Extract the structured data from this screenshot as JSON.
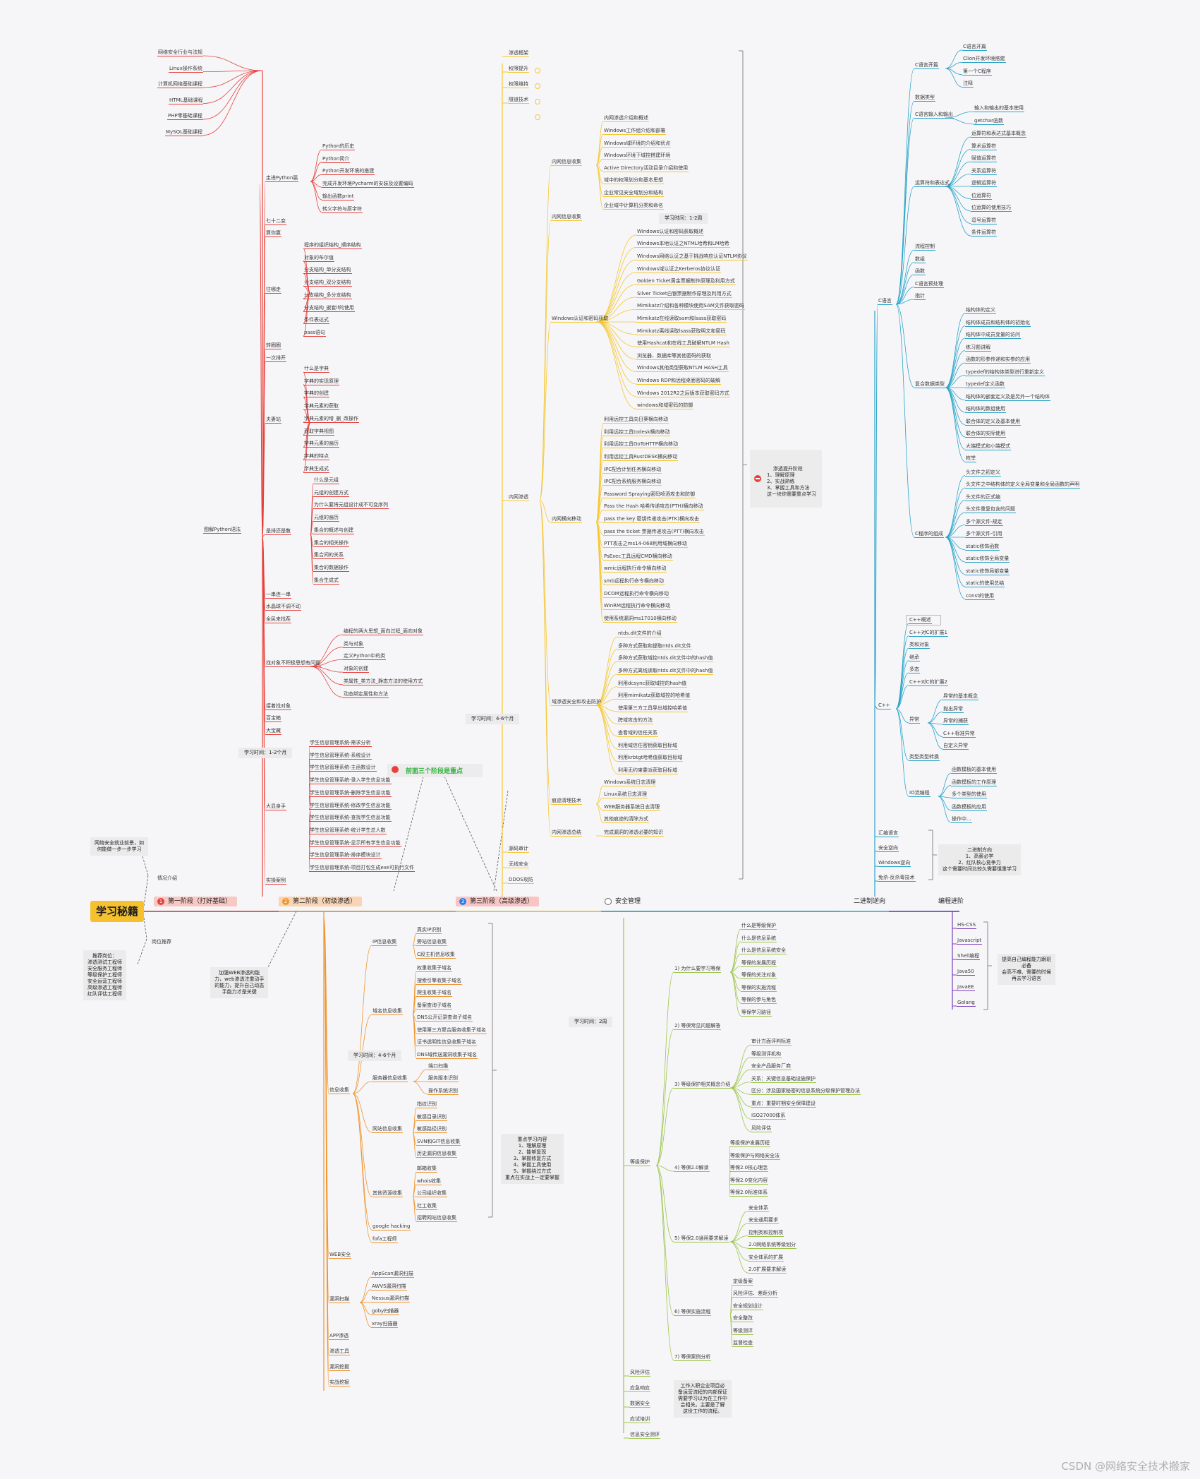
{
  "root": "学习秘籍",
  "stages": {
    "s1": {
      "num": "1",
      "label": "第一阶段（打好基础）"
    },
    "s2": {
      "num": "2",
      "label": "第二阶段（初级渗透）"
    },
    "s3": {
      "num": "3",
      "label": "第三阶段（高级渗透）"
    },
    "safety": "安全管理",
    "binary": "二进制逆向",
    "prog": "编程进阶"
  },
  "left_notes": {
    "future": "网络安全就业前景，如\n何能做一步一步学习",
    "direction_label": "情况介绍",
    "jobs_label": "岗位推荐",
    "jobs": "推荐岗位：\n渗透测试工程师\n安全服务工程师\n等级保护工程师\n安全运营工程师\n高级渗透工程师\n红队评估工程师"
  },
  "stage1": {
    "base_items": [
      "网络安全行业与法规",
      "Linux操作系统",
      "计算机网络基础课程",
      "HTML基础课程",
      "PHP零基础课程",
      "MySQL基础课程"
    ],
    "python_main": "图解Python语法",
    "time": "学习时间：1-2个月",
    "groups": {
      "g1": {
        "label": "走进Python篇",
        "items": [
          "Python的历史",
          "Python简介",
          "Python开发环境的搭建",
          "完成开发环境Pycharm的安装及设置编码",
          "输出函数print",
          "转义字符与原字符"
        ]
      },
      "g2": "七十二变",
      "g3": "算你赢",
      "g4": {
        "label": "往哪走",
        "items": [
          "程序的组织结构_顺序结构",
          "对象的布尔值",
          "分支结构_单分支结构",
          "分支结构_双分支结构",
          "分支结构_多分支结构",
          "分支结构_嵌套if的使用",
          "条件表达式",
          "pass语句"
        ]
      },
      "g5": "转圈圈",
      "g6": "一次排开",
      "g7": {
        "label": "夫妻站",
        "items": [
          "什么是字典",
          "字典的实现原理",
          "字典的创建",
          "字典元素的获取",
          "字典元素的增_删_改操作",
          "获取字典视图",
          "字典元素的遍历",
          "字典的特点",
          "字典生成式"
        ]
      },
      "g8": {
        "label": "是排还是散",
        "items": [
          "什么是元组",
          "元组的创建方式",
          "为什么要将元组设计成不可变序列",
          "元组的遍历",
          "集合的概述与创建",
          "集合的相关操作",
          "集合间的关系",
          "集合的数据操作",
          "集合生成式"
        ]
      },
      "g9": "一串连一串",
      "g10": "水晶球不调不动",
      "g11": "全民来找茬",
      "g12": {
        "label": "找对象不积极思想有问题",
        "items": [
          "编程的两大思想_面向过程_面向对象",
          "类与对象",
          "定义Python中的类",
          "对象的创建",
          "类属性_类方法_静态方法的使用方式",
          "动态绑定属性和方法"
        ]
      },
      "g13": "接着找对象",
      "g14": "百宝箱",
      "g15": "大宝藏",
      "g16": {
        "label": "大显身手",
        "items": [
          "学生信息管理系统-需求分析",
          "学生信息管理系统-系统设计",
          "学生信息管理系统-主函数设计",
          "学生信息管理系统-录入学生信息功能",
          "学生信息管理系统-删除学生信息功能",
          "学生信息管理系统-修改学生信息功能",
          "学生信息管理系统-查找学生信息功能",
          "学生信息管理系统-统计学生总人数",
          "学生信息管理系统-显示所有学生信息功能",
          "学生信息管理系统-排序模块设计",
          "学生信息管理系统-项目打包生成exe可执行文件"
        ]
      },
      "g17": "实操案例"
    }
  },
  "stage2": {
    "note": "加强WEB渗透的能\n力，web渗透注重动手\n的能力，提升自己动态\n手能力才是关键",
    "time": "学习时间：4-6个月",
    "focus": "重点学习内容\n1、理解原理\n2、能够复现\n3、掌握修复方式\n4、掌握工具使用\n5、掌握绕过方式\n重点在实战上一定要掌握",
    "info": "信息收集",
    "ip": {
      "label": "IP信息收集",
      "items": [
        "真实IP识别",
        "旁站信息收集",
        "C段主机信息收集"
      ]
    },
    "domain": {
      "label": "域名信息收集",
      "items": [
        "权重收集子域名",
        "搜索引擎收集子域名",
        "爬虫收集子域名",
        "备案查询子域名",
        "DNS公开记录查询子域名",
        "使用第三方聚合服务收集子域名",
        "证书透明性信息收集子域名",
        "DNS域传送漏洞收集子域名"
      ]
    },
    "svc": {
      "label": "服务器信息收集",
      "items": [
        "端口扫描",
        "服务版本识别",
        "操作系统识别"
      ]
    },
    "site": {
      "label": "网站信息收集",
      "items": [
        "指纹识别",
        "敏感目录识别",
        "敏感路径识别",
        "SVN和GIT信息收集",
        "历史漏洞信息收集"
      ]
    },
    "social": {
      "label": "其他资源收集",
      "items": [
        "邮箱收集",
        "whois收集",
        "公司组织收集",
        "社工收集",
        "招聘网站信息收集"
      ]
    },
    "extra": [
      "google hacking",
      "fofa工程师"
    ],
    "web": "WEB安全",
    "scan": {
      "label": "漏洞扫描",
      "items": [
        "AppScan漏洞扫描",
        "AWVS漏洞扫描",
        "Nessus漏洞扫描",
        "goby扫描器",
        "xray扫描器"
      ]
    },
    "tail": [
      "APP渗透",
      "渗透工具",
      "漏洞挖掘",
      "实战挖掘"
    ]
  },
  "stage3": {
    "warn": "前面三个阶段是重点",
    "top": [
      "渗透框架",
      "权限提升",
      "权限维持",
      "隧道技术"
    ],
    "time": "学习时间：4-6个月",
    "time2": "学习时间：1-2周",
    "intranet": "内网渗透",
    "callout": "渗透提升阶段\n1、理解原理\n2、实战熟练\n3、掌握工具和方法\n这一块你需要重点学习",
    "domain_info": {
      "label": "内网信息收集",
      "items": [
        "内网渗透介绍和概述",
        "Windows工作组介绍和部署",
        "Windows域环境的介绍和优点",
        "Windows环境下域控搭建环境",
        "Active Directory活动目录介绍和使用",
        "域中的权限划分和基本思想",
        "企业常见安全域划分和结构",
        "企业域中计算机分类和命名"
      ]
    },
    "domain_tool": "内网信息收集",
    "auth": {
      "label": "Windows认证和密码获取",
      "items": [
        "Windows认证和密码获取概述",
        "Windows本地认证之NTML哈希和LM哈希",
        "Windows网络认证之基于挑战响应认证NTLM协议",
        "Windows域认证之Kerberos协议认证",
        "Golden Ticket黄金票据制作原理及利用方式",
        "Silver Ticket白银票据制作原理及利用方式",
        "Mimikatz介绍和各种模块使用SAM文件获取密码",
        "Mimikatz在线读取sam和lsass获取密码",
        "Mimikatz离线读取lsass获取明文和密码",
        "使用Hashcat和在线工具破解NTLM Hash",
        "浏览器、数据库等其他密码的获取",
        "Windows其他类型获取NTLM HASH工具",
        "Windows RDP和远程桌面密码的破解",
        "Windows 2012R2之后版本获取密码方式",
        "windows和域密码的防御"
      ]
    },
    "lateral": {
      "label": "内网横向移动",
      "items": [
        "利用远控工具向日葵横向移动",
        "利用远控工具todesk横向移动",
        "利用远控工具GoToHTTP横向移动",
        "利用远控工具RustDESK横向移动",
        "IPC配合计划任务横向移动",
        "IPC配合系统服务横向移动",
        "Password Spraying密码喷洒攻击和防御",
        "Pass the Hash 哈希传递攻击(PTH)横向移动",
        "pass the key 密钥传递攻击(PTK)横向攻击",
        "pass the ticket 票据传递攻击(PTT)横向攻击",
        "PTT攻击之ms14-068利用域横向移动",
        "PsExec工具远程CMD横向移动",
        "wmic远程执行命令横向移动",
        "smb远程执行命令横向移动",
        "DCOM远程执行命令横向移动",
        "WinRM远程执行命令横向移动",
        "使用系统漏洞ms17010横向移动"
      ]
    },
    "domainsec": {
      "label": "域渗透安全和攻击防护",
      "items": [
        "ntds.dit文件的介绍",
        "多种方式获取和提取ntds.dit文件",
        "多种方式获取域控ntds.dit文件中的hash值",
        "多种方式离线读取ntds.dit文件中的hash值",
        "利用dcsync获取域控的hash值",
        "利用mimikatz获取域控的哈希值",
        "使用第三方工具导出域控哈希值",
        "跨域攻击的方法",
        "查看域的信任关系",
        "利用域信任密钥获取目标域",
        "利用krbtgt哈希值获取目标域",
        "利用无约束委派获取目标域"
      ]
    },
    "clean": {
      "label": "痕迹清理技术",
      "items": [
        "Windows系统日志清理",
        "Linux系统日志清理",
        "WEB服务器系统日志清理",
        "其他痕迹的清除方式"
      ]
    },
    "summary": {
      "label": "内网渗透总结",
      "items": [
        "完成漏洞的渗透必要的知识"
      ]
    },
    "bottom": [
      "源码审计",
      "无线安全",
      "DDOS攻防"
    ]
  },
  "safety": {
    "time": "学习时间：2周",
    "dengbao": "等级保护",
    "note": "工作入职企业项目必\n备运营流程的内部保证\n需要学习以为在工作中\n会相关。主要是了解\n这份工作的流程。",
    "q1": {
      "label": "1) 为什么要学习等保",
      "items": [
        "什么是等级保护",
        "什么是信息系统",
        "什么是信息系统安全",
        "等保的发展历程",
        "等保的关注对象",
        "等保的实施流程",
        "等保的参与角色",
        "等保学习路径"
      ]
    },
    "q2": "2) 等保常见问题解答",
    "q3": {
      "label": "3) 等级保护相关概念介绍",
      "items": [
        "审计方面评判标准",
        "等级测评机构",
        "安全产品服务厂商",
        "关系：关键信息基础设施保护",
        "区分：涉及国家秘密的信息系统分级保护管理办法",
        "重点：重要时期安全保障建设",
        "ISO27000体系",
        "风险评估"
      ]
    },
    "q4": {
      "label": "4) 等保2.0解读",
      "items": [
        "等级保护发展历程",
        "等级保护与网络安全法",
        "等保2.0核心理念",
        "等保2.0变化内容",
        "等保2.0标准体系"
      ]
    },
    "q5": {
      "label": "5) 等保2.0通用要求解读",
      "items": [
        "安全体系",
        "安全通用要求",
        "控制类和控制项",
        "2.0网络系统等级划分",
        "安全体系的扩展",
        "2.0扩展要求解读"
      ]
    },
    "q6": {
      "label": "6) 等保实施流程",
      "items": [
        "定级备案",
        "风险评估、差距分析",
        "安全规划设计",
        "安全整改",
        "等级测评",
        "监督检查"
      ]
    },
    "q7": "7) 等保案例分析",
    "tail": [
      "风险评估",
      "应急响应",
      "数据安全",
      "应试培训",
      "信息安全测评"
    ]
  },
  "binary": {
    "c": {
      "label": "C语言",
      "groups": {
        "ce": {
          "label": "C语言开篇",
          "items": [
            "C语言开篇",
            "Clion开发环境搭建",
            "第一个C程序",
            "注释"
          ]
        },
        "dtype": "数据类型",
        "io": {
          "label": "C语言输入和输出",
          "items": [
            "输入和输出的基本使用",
            "getchar函数"
          ]
        },
        "ops": {
          "label": "运算符和表达式",
          "items": [
            "运算符和表达式基本概念",
            "算术运算符",
            "赋值运算符",
            "关系运算符",
            "逻辑运算符",
            "位运算符",
            "位运算的使用技巧",
            "逗号运算符",
            "条件运算符"
          ]
        },
        "mid": [
          "流程控制",
          "数组",
          "函数",
          "C语言预处理",
          "指针"
        ],
        "complex": {
          "label": "复合数据类型",
          "items": [
            "结构体的定义",
            "结构体成员和结构体的初始化",
            "结构体中成员变量的访问",
            "练习题讲解",
            "函数的形参传递和实参的应用",
            "typedef的结构体类型进行重新定义",
            "typedef定义函数",
            "结构体的嵌套定义及是另外一个结构体",
            "结构体的数组使用",
            "联合体的定义及基本使用",
            "联合体的实际使用",
            "大端模式和小端模式",
            "枚举"
          ]
        },
        "proc": {
          "label": "C程序的组成",
          "items": [
            "头文件之初定义",
            "头文件之中结构体的定义全局变量和全局函数的声明",
            "头文件的正式编",
            "头文件重复包含的问题",
            "多个源文件-规定",
            "多个源文件-引用",
            "static修饰函数",
            "static修饰全局变量",
            "static修饰局部变量",
            "static的使用总结",
            "const的使用"
          ]
        }
      }
    },
    "cpp": {
      "label": "C++",
      "items": [
        "C++概述",
        "C++对C的扩展1",
        "类和对象",
        "继承",
        "多态",
        "C++对C的扩展2"
      ],
      "exc": {
        "label": "异常",
        "items": [
          "异常的基本概念",
          "抛出异常",
          "异常的捕获",
          "C++标准异常",
          "自定义异常"
        ]
      },
      "cast": "类型类型转换",
      "io": {
        "label": "IO流编程",
        "items": [
          "函数模板的基本使用",
          "函数模板的工作原理",
          "多个类型的使用",
          "函数模板的应用",
          "操作中..."
        ]
      }
    },
    "tail": [
      "汇编语言",
      "安全逆向",
      "Windows逆向",
      "免杀-反杀毒技术"
    ],
    "note": "二进制方向\n1、高薪必学\n2、红队核心竞争力\n这个需要时间比较久需要慎重学习"
  },
  "prog": {
    "items": [
      "HS-CSS",
      "Javascript",
      "Shell编程",
      "Java50",
      "JavaEE",
      "Golang"
    ],
    "note": "提高自己编程能力跟班\n必备\n会高不难、需要的时候\n再去学习语言"
  },
  "watermark": "CSDN @网络安全技术搬家"
}
